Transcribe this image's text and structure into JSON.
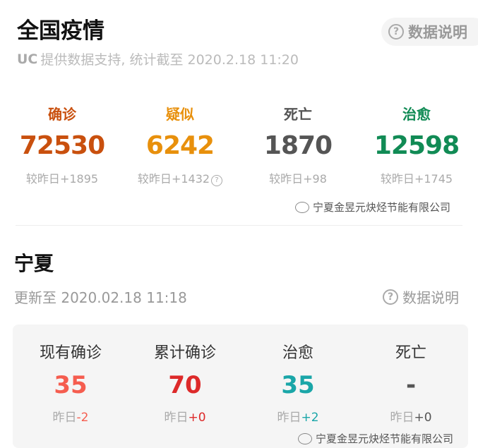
{
  "national": {
    "title": "全国疫情",
    "info_button": "数据说明",
    "source_logo": "UC",
    "source_text": "提供数据支持, 统计截至 2020.2.18 11:20",
    "stats": [
      {
        "label": "确诊",
        "value": "72530",
        "delta_label": "较昨日",
        "delta": "+1895",
        "color": "#c9500e"
      },
      {
        "label": "疑似",
        "value": "6242",
        "delta_label": "较昨日",
        "delta": "+1432",
        "color": "#e8900c",
        "help_icon": true
      },
      {
        "label": "死亡",
        "value": "1870",
        "delta_label": "较昨日",
        "delta": "+98",
        "color": "#555555"
      },
      {
        "label": "治愈",
        "value": "12598",
        "delta_label": "较昨日",
        "delta": "+1745",
        "color": "#118b55"
      }
    ],
    "watermark": "宁夏金昱元炔烃节能有限公司"
  },
  "region": {
    "title": "宁夏",
    "updated": "更新至 2020.02.18 11:18",
    "info_button": "数据说明",
    "stats": [
      {
        "label": "现有确诊",
        "value": "35",
        "delta_label": "昨日",
        "delta": "-2",
        "color": "#f55d4f",
        "delta_color": "#f55d4f"
      },
      {
        "label": "累计确诊",
        "value": "70",
        "delta_label": "昨日",
        "delta": "+0",
        "color": "#dd2a2a",
        "delta_color": "#dd2a2a"
      },
      {
        "label": "治愈",
        "value": "35",
        "delta_label": "昨日",
        "delta": "+2",
        "color": "#1aa6a8",
        "delta_color": "#1aa6a8"
      },
      {
        "label": "死亡",
        "value": "-",
        "delta_label": "昨日",
        "delta": "+0",
        "color": "#555555",
        "delta_color": "#555555"
      }
    ],
    "watermark": "宁夏金昱元炔烃节能有限公司"
  }
}
